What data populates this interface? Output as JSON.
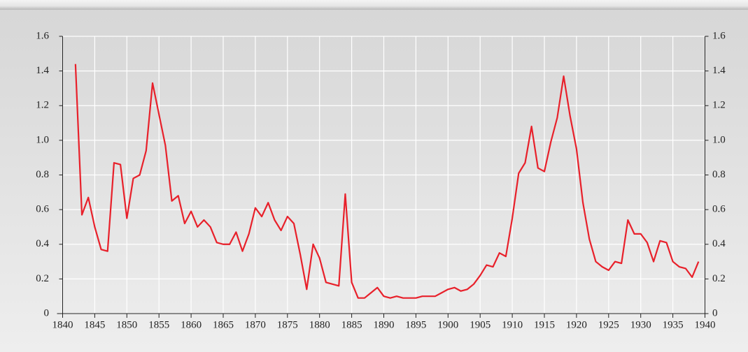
{
  "chart_data": {
    "type": "line",
    "x": [
      1842,
      1843,
      1844,
      1845,
      1846,
      1847,
      1848,
      1849,
      1850,
      1851,
      1852,
      1853,
      1854,
      1855,
      1856,
      1857,
      1858,
      1859,
      1860,
      1861,
      1862,
      1863,
      1864,
      1865,
      1866,
      1867,
      1868,
      1869,
      1870,
      1871,
      1872,
      1873,
      1874,
      1875,
      1876,
      1877,
      1878,
      1879,
      1880,
      1881,
      1882,
      1883,
      1884,
      1885,
      1886,
      1887,
      1888,
      1889,
      1890,
      1891,
      1892,
      1893,
      1894,
      1895,
      1896,
      1897,
      1898,
      1899,
      1900,
      1901,
      1902,
      1903,
      1904,
      1905,
      1906,
      1907,
      1908,
      1909,
      1910,
      1911,
      1912,
      1913,
      1914,
      1915,
      1916,
      1917,
      1918,
      1919,
      1920,
      1921,
      1922,
      1923,
      1924,
      1925,
      1926,
      1927,
      1928,
      1929,
      1930,
      1931,
      1932,
      1933,
      1934,
      1935,
      1936,
      1937,
      1938,
      1939
    ],
    "series": [
      {
        "color": "#e8202a",
        "values": [
          1.44,
          0.57,
          0.67,
          0.5,
          0.37,
          0.36,
          0.87,
          0.86,
          0.55,
          0.78,
          0.8,
          0.94,
          1.33,
          1.15,
          0.97,
          0.65,
          0.68,
          0.52,
          0.59,
          0.5,
          0.54,
          0.5,
          0.41,
          0.4,
          0.4,
          0.47,
          0.36,
          0.46,
          0.61,
          0.56,
          0.64,
          0.54,
          0.48,
          0.56,
          0.52,
          0.34,
          0.14,
          0.4,
          0.32,
          0.18,
          0.17,
          0.16,
          0.69,
          0.18,
          0.09,
          0.09,
          0.12,
          0.15,
          0.1,
          0.09,
          0.1,
          0.09,
          0.09,
          0.09,
          0.1,
          0.1,
          0.1,
          0.12,
          0.14,
          0.15,
          0.13,
          0.14,
          0.17,
          0.22,
          0.28,
          0.27,
          0.35,
          0.33,
          0.55,
          0.81,
          0.87,
          1.08,
          0.84,
          0.82,
          0.99,
          1.13,
          1.37,
          1.14,
          0.95,
          0.64,
          0.43,
          0.3,
          0.27,
          0.25,
          0.3,
          0.29,
          0.54,
          0.46,
          0.46,
          0.41,
          0.3,
          0.42,
          0.41,
          0.3,
          0.27,
          0.26,
          0.21,
          0.3
        ]
      }
    ],
    "xlim": [
      1840,
      1940
    ],
    "xticks": [
      1840,
      1845,
      1850,
      1855,
      1860,
      1865,
      1870,
      1875,
      1880,
      1885,
      1890,
      1895,
      1900,
      1905,
      1910,
      1915,
      1920,
      1925,
      1930,
      1935,
      1940
    ],
    "ylim": [
      0,
      1.6
    ],
    "yticks": [
      0,
      0.2,
      0.4,
      0.6,
      0.8,
      {
        "value": 1,
        "label": "1.0"
      },
      1.2,
      1.4,
      1.6
    ],
    "grid": true
  }
}
